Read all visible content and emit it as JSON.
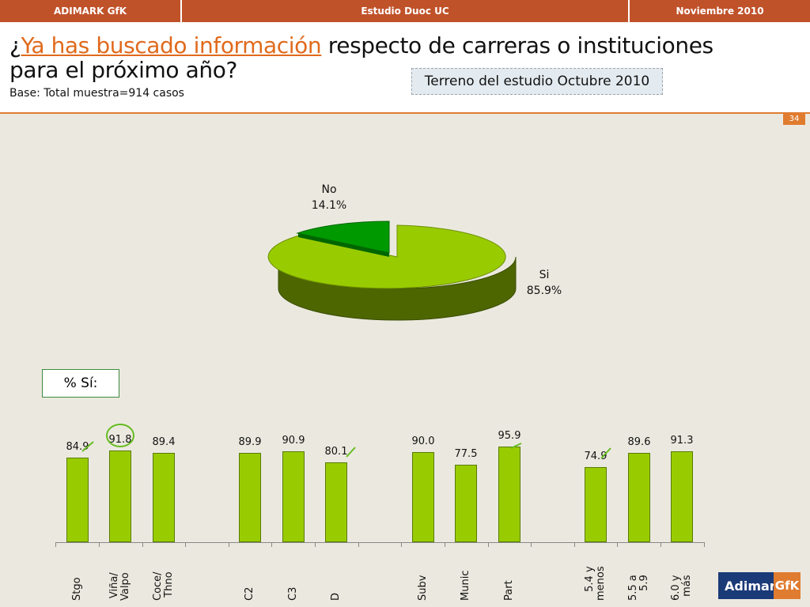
{
  "topbar": {
    "left": "ADIMARK GfK",
    "center": "Estudio Duoc UC",
    "right": "Noviembre 2010"
  },
  "title": {
    "prefix": "¿",
    "highlight": "Ya has buscado información",
    "rest": " respecto de carreras o instituciones para el próximo año?"
  },
  "base": "Base: Total muestra=914 casos",
  "terreno": "Terreno del estudio Octubre 2010",
  "page_number": "34",
  "pie": {
    "no_label": "No",
    "no_pct": "14.1%",
    "si_label": "Si",
    "si_pct": "85.9%",
    "colors": {
      "si": "#99cc00",
      "si_side": "#4d6600",
      "no": "#009900",
      "no_side": "#006600"
    }
  },
  "pct_si_label": "% Sí:",
  "logo": {
    "main": "Adimark",
    "accent": "GfK"
  },
  "chart_data": [
    {
      "type": "pie",
      "categories": [
        "No",
        "Si"
      ],
      "values": [
        14.1,
        85.9
      ]
    },
    {
      "type": "bar",
      "categories": [
        "Stgo",
        "Viña/\nValpo",
        "Coce/\nThno",
        "C2",
        "C3",
        "D",
        "Subv",
        "Munic",
        "Part",
        "5.4 y\nmenos",
        "5.5 a\n5.9",
        "6.0 y\nmás"
      ],
      "values": [
        84.9,
        91.8,
        89.4,
        89.9,
        90.9,
        80.1,
        90.0,
        77.5,
        95.9,
        74.9,
        89.6,
        91.3
      ],
      "labels": [
        "84.9",
        "91.8",
        "89.4",
        "89.9",
        "90.9",
        "80.1",
        "90.0",
        "77.5",
        "95.9",
        "74.9",
        "89.6",
        "91.3"
      ],
      "color": "#99cc00"
    }
  ]
}
